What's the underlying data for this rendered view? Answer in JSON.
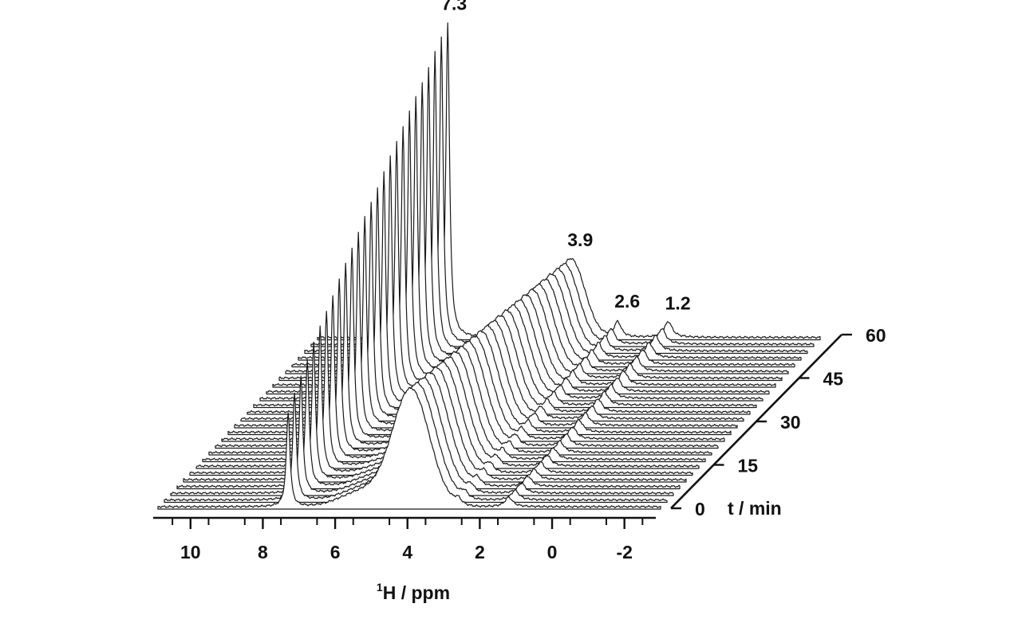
{
  "chart_data": {
    "type": "line",
    "subtype": "stacked-3d-spectra",
    "xlabel_sup": "1",
    "xlabel_main": "H / ppm",
    "zlabel": "t / min",
    "x_axis": {
      "lim": [
        10.9,
        -3.0
      ],
      "reversed": true,
      "ticks": [
        10,
        8,
        6,
        4,
        2,
        0,
        -2
      ],
      "tick_labels": [
        "10",
        "8",
        "6",
        "4",
        "2",
        "0",
        "-2"
      ]
    },
    "t_axis": {
      "lim": [
        0,
        60
      ],
      "ticks": [
        0,
        15,
        30,
        45,
        60
      ],
      "tick_labels": [
        "0",
        "15",
        "30",
        "45",
        "60"
      ]
    },
    "n_spectra": 26,
    "time_step_min": 2.4,
    "peaks": [
      {
        "label": "7.3",
        "ppm": 7.3,
        "initial_intensity": 0.3,
        "final_intensity": 1.0
      },
      {
        "label": "3.9",
        "ppm": 3.9,
        "initial_intensity": 0.37,
        "final_intensity": 0.25
      },
      {
        "label": "2.6",
        "ppm": 2.6,
        "initial_intensity": 0.02,
        "final_intensity": 0.05
      },
      {
        "label": "1.2",
        "ppm": 1.2,
        "initial_intensity": 0.03,
        "final_intensity": 0.05
      }
    ],
    "grid": false,
    "legend": "none"
  }
}
